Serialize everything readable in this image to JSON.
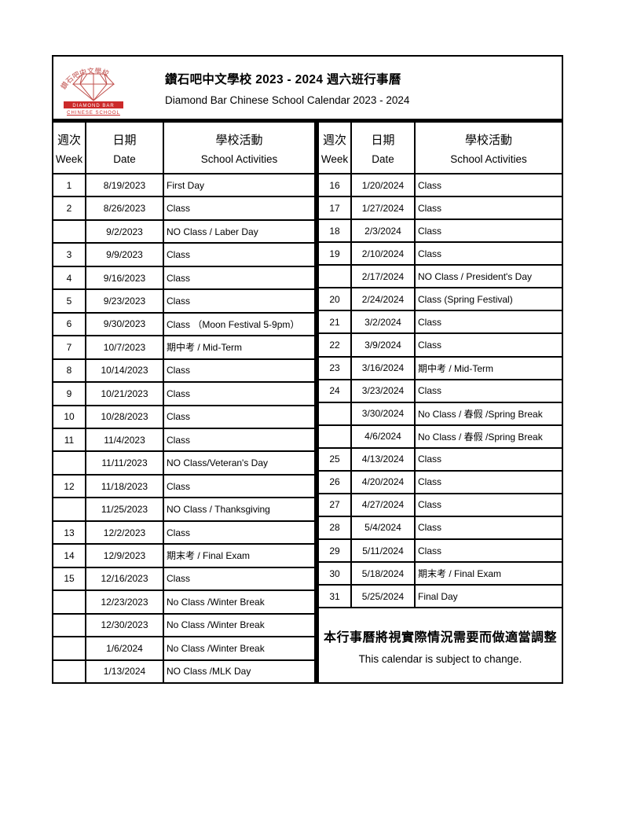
{
  "header": {
    "title_zh": "鑽石吧中文學校 2023 - 2024 週六班行事曆",
    "title_en": "Diamond Bar Chinese School Calendar 2023 - 2024",
    "logo": {
      "arc_text": "鑽石吧中文學校",
      "banner_line1": "DIAMOND BAR",
      "banner_line2": "CHINESE SCHOOL"
    }
  },
  "columns": {
    "week_zh": "週次",
    "week_en": "Week",
    "date_zh": "日期",
    "date_en": "Date",
    "act_zh": "學校活動",
    "act_en": "School Activities"
  },
  "left_rows": [
    {
      "week": "1",
      "date": "8/19/2023",
      "activity": "First  Day"
    },
    {
      "week": "2",
      "date": "8/26/2023",
      "activity": "Class"
    },
    {
      "week": "",
      "date": "9/2/2023",
      "activity": "NO Class / Laber Day"
    },
    {
      "week": "3",
      "date": "9/9/2023",
      "activity": "Class"
    },
    {
      "week": "4",
      "date": "9/16/2023",
      "activity": "Class"
    },
    {
      "week": "5",
      "date": "9/23/2023",
      "activity": "Class"
    },
    {
      "week": "6",
      "date": "9/30/2023",
      "activity": "Class （Moon Festival 5-9pm）"
    },
    {
      "week": "7",
      "date": "10/7/2023",
      "activity": "期中考 / Mid-Term"
    },
    {
      "week": "8",
      "date": "10/14/2023",
      "activity": "Class"
    },
    {
      "week": "9",
      "date": "10/21/2023",
      "activity": "Class"
    },
    {
      "week": "10",
      "date": "10/28/2023",
      "activity": "Class"
    },
    {
      "week": "11",
      "date": "11/4/2023",
      "activity": "Class"
    },
    {
      "week": "",
      "date": "11/11/2023",
      "activity": "NO Class/Veteran's Day"
    },
    {
      "week": "12",
      "date": "11/18/2023",
      "activity": "Class"
    },
    {
      "week": "",
      "date": "11/25/2023",
      "activity": "NO Class / Thanksgiving"
    },
    {
      "week": "13",
      "date": "12/2/2023",
      "activity": "Class"
    },
    {
      "week": "14",
      "date": "12/9/2023",
      "activity": "期末考 / Final Exam"
    },
    {
      "week": "15",
      "date": "12/16/2023",
      "activity": "Class"
    },
    {
      "week": "",
      "date": "12/23/2023",
      "activity": "No Class /Winter Break"
    },
    {
      "week": "",
      "date": "12/30/2023",
      "activity": "No Class /Winter Break"
    },
    {
      "week": "",
      "date": "1/6/2024",
      "activity": "No Class /Winter Break"
    },
    {
      "week": "",
      "date": "1/13/2024",
      "activity": "NO Class /MLK Day"
    }
  ],
  "right_rows": [
    {
      "week": "16",
      "date": "1/20/2024",
      "activity": "Class"
    },
    {
      "week": "17",
      "date": "1/27/2024",
      "activity": "Class"
    },
    {
      "week": "18",
      "date": "2/3/2024",
      "activity": "Class"
    },
    {
      "week": "19",
      "date": "2/10/2024",
      "activity": "Class"
    },
    {
      "week": "",
      "date": "2/17/2024",
      "activity": "NO Class / President's Day"
    },
    {
      "week": "20",
      "date": "2/24/2024",
      "activity": "Class (Spring Festival)"
    },
    {
      "week": "21",
      "date": "3/2/2024",
      "activity": "Class"
    },
    {
      "week": "22",
      "date": "3/9/2024",
      "activity": "Class"
    },
    {
      "week": "23",
      "date": "3/16/2024",
      "activity": "期中考 / Mid-Term"
    },
    {
      "week": "24",
      "date": "3/23/2024",
      "activity": "Class"
    },
    {
      "week": "",
      "date": "3/30/2024",
      "activity": "No Class / 春假  /Spring Break"
    },
    {
      "week": "",
      "date": "4/6/2024",
      "activity": "No Class / 春假  /Spring Break"
    },
    {
      "week": "25",
      "date": "4/13/2024",
      "activity": "Class"
    },
    {
      "week": "26",
      "date": "4/20/2024",
      "activity": "Class"
    },
    {
      "week": "27",
      "date": "4/27/2024",
      "activity": "Class"
    },
    {
      "week": "28",
      "date": "5/4/2024",
      "activity": "Class"
    },
    {
      "week": "29",
      "date": "5/11/2024",
      "activity": "Class"
    },
    {
      "week": "30",
      "date": "5/18/2024",
      "activity": "期末考 / Final Exam"
    },
    {
      "week": "31",
      "date": "5/25/2024",
      "activity": "Final Day"
    }
  ],
  "note": {
    "zh": "本行事曆將視實際情況需要而做適當調整",
    "en": "This calendar is subject to change."
  },
  "colors": {
    "logo_outline": "#c0504d",
    "logo_banner": "#cc2a2a",
    "border_black": "#000000"
  }
}
